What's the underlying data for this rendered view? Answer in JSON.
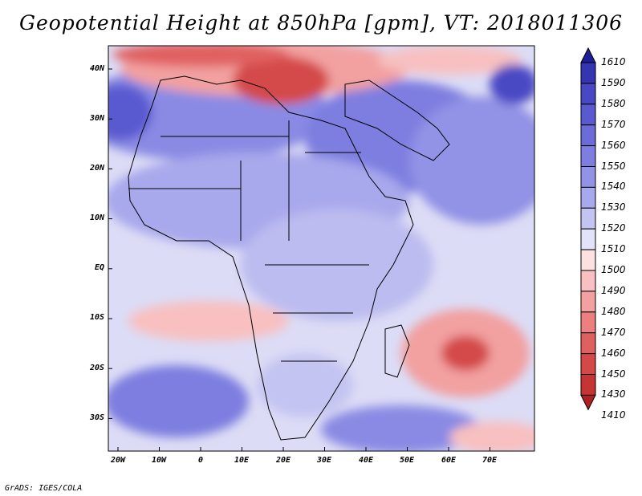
{
  "title": "Geopotential Height at 850hPa [gpm], VT: 2018011306",
  "credit": "GrADS: IGES/COLA",
  "map": {
    "lat_labels": [
      "40N",
      "30N",
      "20N",
      "10N",
      "EQ",
      "10S",
      "20S",
      "30S"
    ],
    "lon_labels": [
      "20W",
      "10W",
      "0",
      "10E",
      "20E",
      "30E",
      "40E",
      "50E",
      "60E",
      "70E"
    ],
    "variable": "Geopotential Height",
    "level": "850hPa",
    "units": "gpm",
    "valid_time": "2018011306"
  },
  "colorbar": {
    "levels": [
      "1610",
      "1590",
      "1580",
      "1570",
      "1560",
      "1550",
      "1540",
      "1530",
      "1520",
      "1510",
      "1500",
      "1490",
      "1480",
      "1470",
      "1460",
      "1450",
      "1430",
      "1410"
    ],
    "colors": [
      "#1e1e96",
      "#3535b4",
      "#4848c4",
      "#5a5ad0",
      "#6c6cd8",
      "#7e7ee0",
      "#9292e6",
      "#a8a8ec",
      "#c4c4f2",
      "#e2e2f8",
      "#fde0e0",
      "#f8c0c0",
      "#f2a0a0",
      "#ec8080",
      "#e06060",
      "#d44848",
      "#c63434",
      "#b02020"
    ]
  },
  "colors": {
    "sea_blue": "#c8c8f2",
    "land_blue": "#b4b4ee",
    "ridge_red": "#d23c3c",
    "border": "#000000"
  }
}
